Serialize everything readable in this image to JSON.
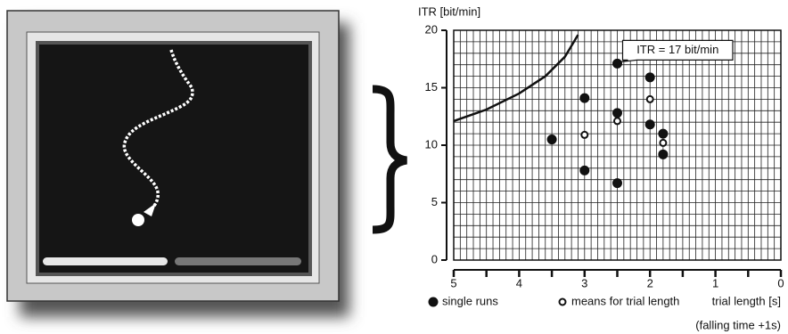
{
  "chart_data": {
    "type": "scatter",
    "y_label": "ITR  [bit/min]",
    "x_label": "trial length [s]",
    "x_note": "(falling time +1s)",
    "annotation": {
      "text": "ITR = 17 bit/min",
      "x": 2.5,
      "y": 17.1
    },
    "xlim": [
      5,
      0
    ],
    "xticks": [
      5,
      4,
      3,
      2,
      1,
      0
    ],
    "ylim": [
      0,
      20
    ],
    "yticks": [
      0,
      5,
      10,
      15,
      20
    ],
    "grid": true,
    "series": [
      {
        "name": "single runs",
        "marker": "filled",
        "color": "#111111",
        "x": [
          3.5,
          3,
          3,
          2.5,
          2.5,
          2.5,
          2,
          2,
          1.8,
          1.8
        ],
        "values": [
          10.5,
          14.1,
          7.8,
          17.1,
          12.8,
          6.7,
          15.9,
          11.8,
          11,
          9.2
        ]
      },
      {
        "name": "means for trial length",
        "marker": "open",
        "color": "#111111",
        "x": [
          3,
          2.5,
          2,
          1.8
        ],
        "values": [
          10.9,
          12.1,
          14,
          10.2
        ]
      },
      {
        "marker": "line",
        "color": "#111111",
        "x": [
          5,
          4.5,
          4,
          3.6,
          3.3,
          3.1
        ],
        "values": [
          12.1,
          13.1,
          14.5,
          16,
          17.7,
          19.6
        ]
      }
    ]
  }
}
